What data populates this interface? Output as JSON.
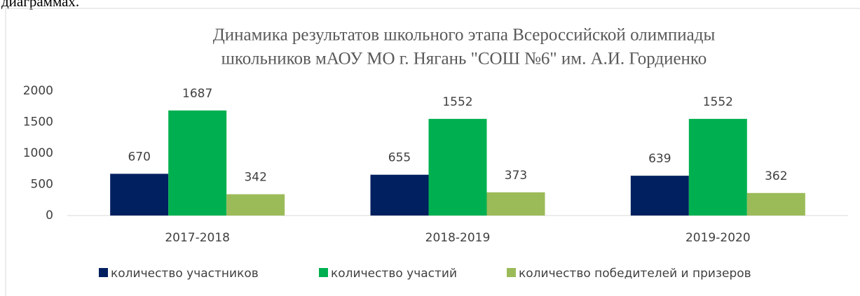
{
  "intro_text": "диаграммах.",
  "chart_data": {
    "type": "bar",
    "title_lines": [
      "Динамика результатов школьного этапа Всероссийской олимпиады",
      "школьников мАОУ МО г. Нягань \"СОШ №6\" им. А.И. Гордиенко"
    ],
    "categories": [
      "2017-2018",
      "2018-2019",
      "2019-2020"
    ],
    "series": [
      {
        "name": "количество участников",
        "color": "#002060",
        "values": [
          670,
          655,
          639
        ]
      },
      {
        "name": "количество участий",
        "color": "#00b050",
        "values": [
          1687,
          1552,
          1552
        ]
      },
      {
        "name": "количество победителей и призеров",
        "color": "#9bbb59",
        "values": [
          342,
          373,
          362
        ]
      }
    ],
    "ylim": [
      0,
      2000
    ],
    "yticks": [
      0,
      500,
      1000,
      1500,
      2000
    ],
    "grid": false,
    "legend": "bottom"
  }
}
